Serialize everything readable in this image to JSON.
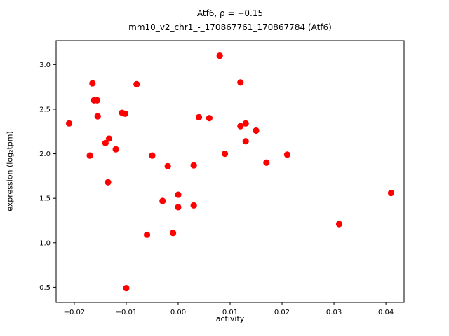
{
  "figure": {
    "title_line1": "Atf6, ρ = −0.15",
    "title_line2": "mm10_v2_chr1_-_170867761_170867784 (Atf6)",
    "xlabel": "activity",
    "ylabel": "expression (log₂tpm)"
  },
  "chart_data": {
    "type": "scatter",
    "title": "Atf6, ρ = −0.15\nmm10_v2_chr1_-_170867761_170867784 (Atf6)",
    "xlabel": "activity",
    "ylabel": "expression (log2tpm)",
    "legend": "none",
    "grid": false,
    "marker_color": "#ff0000",
    "xlim": [
      -0.0235,
      0.0435
    ],
    "ylim": [
      0.33,
      3.27
    ],
    "xticks": [
      -0.02,
      -0.01,
      0.0,
      0.01,
      0.02,
      0.03,
      0.04
    ],
    "yticks": [
      0.5,
      1.0,
      1.5,
      2.0,
      2.5,
      3.0
    ],
    "points": [
      [
        -0.021,
        2.34
      ],
      [
        -0.017,
        1.98
      ],
      [
        -0.0165,
        2.79
      ],
      [
        -0.0162,
        2.6
      ],
      [
        -0.0156,
        2.6
      ],
      [
        -0.0155,
        2.42
      ],
      [
        -0.014,
        2.12
      ],
      [
        -0.0133,
        2.17
      ],
      [
        -0.0135,
        1.68
      ],
      [
        -0.012,
        2.05
      ],
      [
        -0.0108,
        2.46
      ],
      [
        -0.0102,
        2.45
      ],
      [
        -0.01,
        0.49
      ],
      [
        -0.008,
        2.78
      ],
      [
        -0.006,
        1.09
      ],
      [
        -0.005,
        1.98
      ],
      [
        -0.003,
        1.47
      ],
      [
        -0.002,
        1.86
      ],
      [
        -0.001,
        1.11
      ],
      [
        0.0,
        1.54
      ],
      [
        0.0,
        1.4
      ],
      [
        0.003,
        1.42
      ],
      [
        0.003,
        1.87
      ],
      [
        0.004,
        2.41
      ],
      [
        0.006,
        2.4
      ],
      [
        0.008,
        3.1
      ],
      [
        0.009,
        2.0
      ],
      [
        0.012,
        2.8
      ],
      [
        0.012,
        2.31
      ],
      [
        0.013,
        2.34
      ],
      [
        0.013,
        2.14
      ],
      [
        0.015,
        2.26
      ],
      [
        0.017,
        1.9
      ],
      [
        0.021,
        1.99
      ],
      [
        0.031,
        1.21
      ],
      [
        0.041,
        1.56
      ]
    ]
  }
}
